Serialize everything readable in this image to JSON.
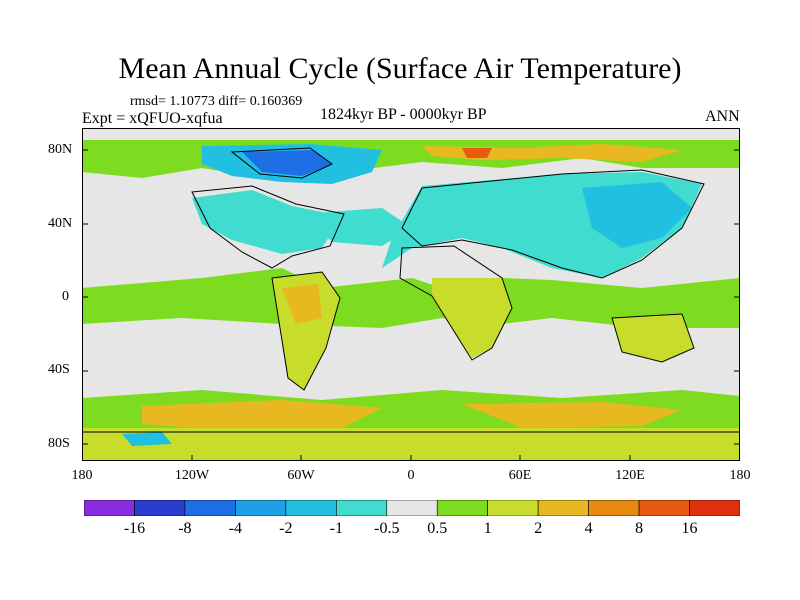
{
  "figure": {
    "title": "Mean Annual Cycle (Surface Air Temperature)",
    "stats": "rmsd= 1.10773 diff= 0.160369",
    "experiment": "Expt = xQFUO-xqfua",
    "period": "1824kyr BP - 0000kyr BP",
    "season": "ANN"
  },
  "axes": {
    "lat_labels": [
      "80N",
      "40N",
      "0",
      "40S",
      "80S"
    ],
    "lon_labels": [
      "180",
      "120W",
      "60W",
      "0",
      "60E",
      "120E",
      "180"
    ]
  },
  "colorbar": {
    "labels": [
      "-16",
      "-8",
      "-4",
      "-2",
      "-1",
      "-0.5",
      "0.5",
      "1",
      "2",
      "4",
      "8",
      "16"
    ],
    "colors": [
      "#8a2be2",
      "#2a3bd0",
      "#1e6fe6",
      "#1ea0e6",
      "#22c0e0",
      "#40dcd0",
      "#e6e6e6",
      "#7ddc1f",
      "#c8dc2c",
      "#e8b820",
      "#e88a10",
      "#e85a10",
      "#e03010"
    ]
  }
}
